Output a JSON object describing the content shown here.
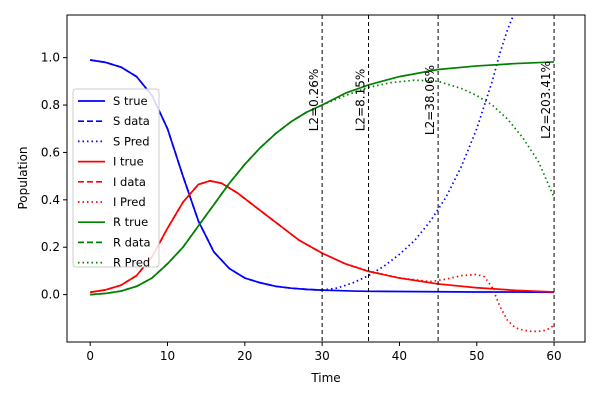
{
  "chart_data": {
    "type": "line",
    "title": "",
    "xlabel": "Time",
    "ylabel": "Population",
    "xlim": [
      -3,
      64
    ],
    "ylim": [
      -0.2,
      1.18
    ],
    "xticks": [
      0,
      10,
      20,
      30,
      40,
      50,
      60
    ],
    "yticks": [
      0.0,
      0.2,
      0.4,
      0.6,
      0.8,
      1.0
    ],
    "xtick_labels": [
      "0",
      "10",
      "20",
      "30",
      "40",
      "50",
      "60"
    ],
    "ytick_labels": [
      "0.0",
      "0.2",
      "0.4",
      "0.6",
      "0.8",
      "1.0"
    ],
    "grid": false,
    "legend_position": "center-left",
    "series": [
      {
        "name": "S true",
        "color": "#0000ff",
        "style": "solid",
        "x": [
          0,
          2,
          4,
          6,
          8,
          10,
          12,
          14,
          16,
          18,
          20,
          22,
          24,
          26,
          28,
          30,
          32,
          34,
          36,
          40,
          45,
          50,
          55,
          60
        ],
        "y": [
          0.99,
          0.98,
          0.96,
          0.92,
          0.84,
          0.7,
          0.5,
          0.31,
          0.18,
          0.11,
          0.07,
          0.05,
          0.035,
          0.027,
          0.022,
          0.019,
          0.017,
          0.015,
          0.014,
          0.013,
          0.012,
          0.011,
          0.011,
          0.01
        ]
      },
      {
        "name": "S data",
        "color": "#0000ff",
        "style": "dashed",
        "x": [
          0,
          2,
          4,
          6,
          8,
          10,
          12,
          14,
          16,
          18,
          20,
          22,
          24,
          26,
          28,
          30
        ],
        "y": [
          0.99,
          0.98,
          0.96,
          0.92,
          0.84,
          0.7,
          0.5,
          0.31,
          0.18,
          0.11,
          0.07,
          0.05,
          0.035,
          0.027,
          0.022,
          0.019
        ]
      },
      {
        "name": "S Pred",
        "color": "#0000ff",
        "style": "dotted",
        "x": [
          30,
          32,
          34,
          36,
          38,
          40,
          42,
          44,
          46,
          48,
          50,
          52,
          53,
          54,
          55
        ],
        "y": [
          0.019,
          0.028,
          0.05,
          0.08,
          0.12,
          0.17,
          0.23,
          0.31,
          0.41,
          0.54,
          0.7,
          0.9,
          1.02,
          1.12,
          1.2
        ]
      },
      {
        "name": "I true",
        "color": "#ff0000",
        "style": "solid",
        "x": [
          0,
          2,
          4,
          6,
          8,
          10,
          12,
          14,
          15.5,
          17,
          19,
          21,
          23,
          25,
          27,
          30,
          33,
          36,
          40,
          45,
          50,
          55,
          60
        ],
        "y": [
          0.01,
          0.02,
          0.04,
          0.08,
          0.16,
          0.28,
          0.39,
          0.465,
          0.48,
          0.47,
          0.43,
          0.38,
          0.33,
          0.28,
          0.23,
          0.175,
          0.13,
          0.098,
          0.07,
          0.045,
          0.029,
          0.018,
          0.011
        ]
      },
      {
        "name": "I data",
        "color": "#ff0000",
        "style": "dashed",
        "x": [
          0,
          2,
          4,
          6,
          8,
          10,
          12,
          14,
          15.5,
          17,
          19,
          21,
          23,
          25,
          27,
          30
        ],
        "y": [
          0.01,
          0.02,
          0.04,
          0.08,
          0.16,
          0.28,
          0.39,
          0.465,
          0.48,
          0.47,
          0.43,
          0.38,
          0.33,
          0.28,
          0.23,
          0.175
        ]
      },
      {
        "name": "I Pred",
        "color": "#ff0000",
        "style": "dotted",
        "x": [
          30,
          33,
          36,
          40,
          44,
          46,
          48,
          50,
          51,
          52,
          53,
          54,
          55,
          56,
          57,
          58,
          59,
          60
        ],
        "y": [
          0.175,
          0.13,
          0.1,
          0.07,
          0.055,
          0.065,
          0.08,
          0.085,
          0.075,
          0.03,
          -0.05,
          -0.11,
          -0.14,
          -0.15,
          -0.155,
          -0.155,
          -0.15,
          -0.13
        ]
      },
      {
        "name": "R true",
        "color": "#008000",
        "style": "solid",
        "x": [
          0,
          2,
          4,
          6,
          8,
          10,
          12,
          14,
          16,
          18,
          20,
          22,
          24,
          26,
          28,
          30,
          33,
          36,
          40,
          45,
          50,
          55,
          60
        ],
        "y": [
          0.0,
          0.005,
          0.015,
          0.035,
          0.07,
          0.13,
          0.2,
          0.29,
          0.38,
          0.47,
          0.55,
          0.62,
          0.68,
          0.73,
          0.77,
          0.8,
          0.85,
          0.885,
          0.92,
          0.95,
          0.965,
          0.975,
          0.982
        ]
      },
      {
        "name": "R data",
        "color": "#008000",
        "style": "dashed",
        "x": [
          0,
          2,
          4,
          6,
          8,
          10,
          12,
          14,
          16,
          18,
          20,
          22,
          24,
          26,
          28,
          30
        ],
        "y": [
          0.0,
          0.005,
          0.015,
          0.035,
          0.07,
          0.13,
          0.2,
          0.29,
          0.38,
          0.47,
          0.55,
          0.62,
          0.68,
          0.73,
          0.77,
          0.8
        ]
      },
      {
        "name": "R Pred",
        "color": "#008000",
        "style": "dotted",
        "x": [
          30,
          33,
          36,
          39,
          42,
          45,
          48,
          50,
          52,
          54,
          56,
          58,
          60
        ],
        "y": [
          0.8,
          0.84,
          0.875,
          0.895,
          0.905,
          0.9,
          0.87,
          0.84,
          0.8,
          0.74,
          0.66,
          0.56,
          0.41
        ]
      }
    ],
    "vlines": [
      {
        "x": 30,
        "label": "L2=0.26%"
      },
      {
        "x": 36,
        "label": "L2=8.15%"
      },
      {
        "x": 45,
        "label": "L2=38.06%"
      },
      {
        "x": 60,
        "label": "L2=203.41%"
      }
    ]
  }
}
